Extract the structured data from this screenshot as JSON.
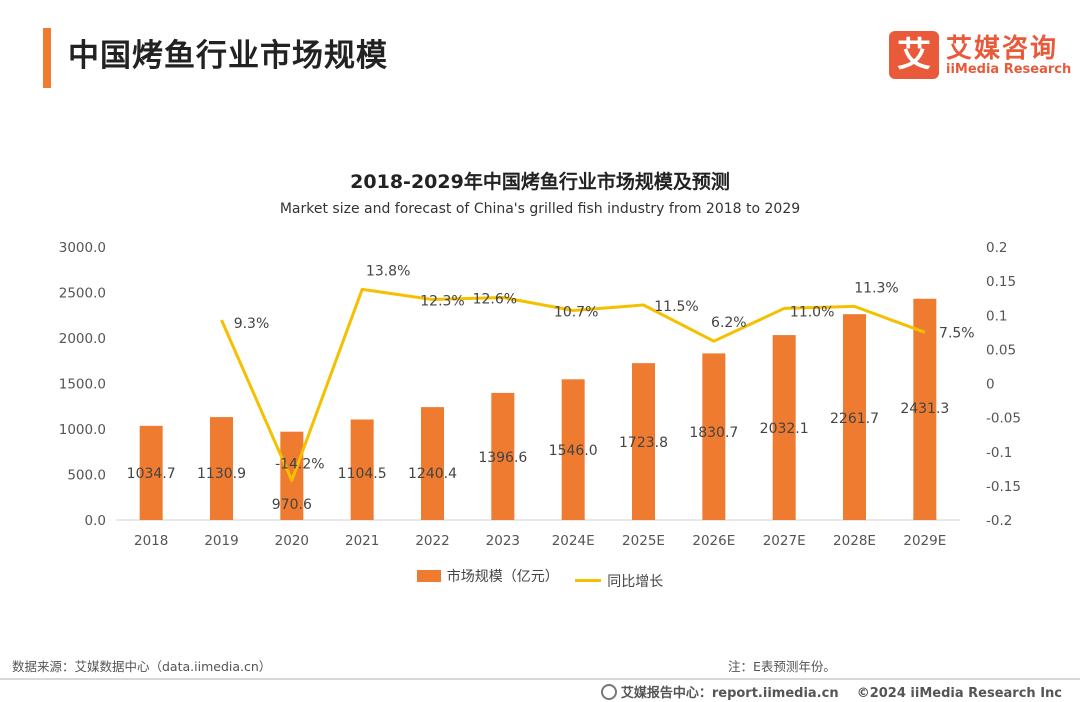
{
  "header": {
    "title": "中国烤鱼行业市场规模",
    "logo_mark": "艾",
    "logo_cn": "艾媒咨询",
    "logo_en": "iiMedia Research"
  },
  "chart_data": {
    "type": "bar+line",
    "title": "2018-2029年中国烤鱼行业市场规模及预测",
    "subtitle": "Market size and forecast of China's grilled fish industry from 2018 to 2029",
    "categories": [
      "2018",
      "2019",
      "2020",
      "2021",
      "2022",
      "2023",
      "2024E",
      "2025E",
      "2026E",
      "2027E",
      "2028E",
      "2029E"
    ],
    "series": [
      {
        "name": "市场规模（亿元）",
        "type": "bar",
        "axis": "left",
        "color": "#ee7b30",
        "values": [
          1034.7,
          1130.9,
          970.6,
          1104.5,
          1240.4,
          1396.6,
          1546.0,
          1723.8,
          1830.7,
          2032.1,
          2261.7,
          2431.3
        ],
        "labels": [
          "1034.7",
          "1130.9",
          "970.6",
          "1104.5",
          "1240.4",
          "1396.6",
          "1546.0",
          "1723.8",
          "1830.7",
          "2032.1",
          "2261.7",
          "2431.3"
        ]
      },
      {
        "name": "同比增长",
        "type": "line",
        "axis": "right",
        "color": "#f5c000",
        "values": [
          null,
          0.093,
          -0.142,
          0.138,
          0.123,
          0.126,
          0.107,
          0.115,
          0.062,
          0.11,
          0.113,
          0.075
        ],
        "labels": [
          "",
          "9.3%",
          "-14.2%",
          "13.8%",
          "12.3%",
          "12.6%",
          "10.7%",
          "11.5%",
          "6.2%",
          "11.0%",
          "11.3%",
          "7.5%"
        ]
      }
    ],
    "y_left": {
      "min": 0,
      "max": 3000,
      "ticks": [
        "0.0",
        "500.0",
        "1000.0",
        "1500.0",
        "2000.0",
        "2500.0",
        "3000.0"
      ]
    },
    "y_right": {
      "min": -0.2,
      "max": 0.2,
      "ticks": [
        "-0.2",
        "-0.15",
        "-0.1",
        "-0.05",
        "0",
        "0.05",
        "0.1",
        "0.15",
        "0.2"
      ]
    },
    "legend": [
      "市场规模（亿元）",
      "同比增长"
    ]
  },
  "footer": {
    "source": "数据来源：艾媒数据中心（data.iimedia.cn）",
    "note": "注：E表预测年份。",
    "report": "艾媒报告中心：report.iimedia.cn",
    "copyright": "©2024  iiMedia Research  Inc"
  }
}
